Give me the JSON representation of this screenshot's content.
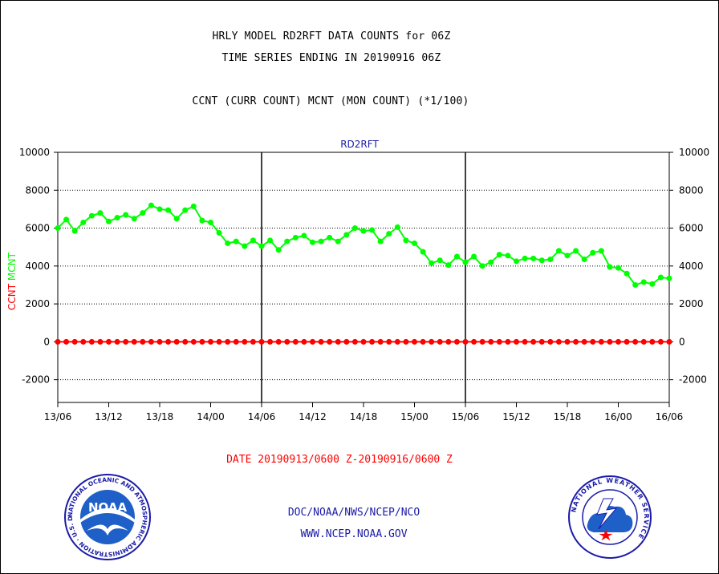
{
  "header": {
    "title_line1": "HRLY MODEL RD2RFT DATA COUNTS for 06Z",
    "title_line2": "TIME SERIES ENDING IN 20190916 06Z",
    "title_line3": "CCNT (CURR COUNT) MCNT (MON COUNT) (*1/100)"
  },
  "footer": {
    "date_range": "DATE 20190913/0600 Z-20190916/0600 Z",
    "org_line": "DOC/NOAA/NWS/NCEP/NCO",
    "url_line": "WWW.NCEP.NOAA.GOV"
  },
  "logos": {
    "noaa_text": "NOAA",
    "noaa_ring_text": "NATIONAL OCEANIC AND ATMOSPHERIC ADMINISTRATION · U.S. DEPARTMENT OF COMMERCE",
    "nws_ring_text": "NATIONAL WEATHER SERVICE"
  },
  "colors": {
    "mcnt_series": "#00ff00",
    "ccnt_series": "#ff0000",
    "chart_label": "#1a1aa8",
    "grid": "#000000"
  },
  "chart_data": {
    "type": "line",
    "title": "RD2RFT",
    "ylabel_parts": [
      {
        "text": "CCNT",
        "color": "#ff0000"
      },
      {
        "text": "MCNT",
        "color": "#00ff00"
      }
    ],
    "ylim": [
      -3200,
      10000
    ],
    "yticks": [
      -2000,
      0,
      2000,
      4000,
      6000,
      8000,
      10000
    ],
    "xlim": [
      0,
      72
    ],
    "xticks": [
      {
        "x": 0,
        "label": "13/06"
      },
      {
        "x": 6,
        "label": "13/12"
      },
      {
        "x": 12,
        "label": "13/18"
      },
      {
        "x": 18,
        "label": "14/00"
      },
      {
        "x": 24,
        "label": "14/06"
      },
      {
        "x": 30,
        "label": "14/12"
      },
      {
        "x": 36,
        "label": "14/18"
      },
      {
        "x": 42,
        "label": "15/00"
      },
      {
        "x": 48,
        "label": "15/06"
      },
      {
        "x": 54,
        "label": "15/12"
      },
      {
        "x": 60,
        "label": "15/18"
      },
      {
        "x": 66,
        "label": "16/00"
      },
      {
        "x": 72,
        "label": "16/06"
      }
    ],
    "day_boundaries": [
      24,
      48
    ],
    "grid": true,
    "right_axis": true,
    "series": [
      {
        "name": "MCNT",
        "color": "#00ff00",
        "values": [
          6000,
          6450,
          5850,
          6300,
          6650,
          6800,
          6350,
          6550,
          6700,
          6500,
          6800,
          7200,
          7000,
          6950,
          6500,
          6950,
          7150,
          6400,
          6300,
          5750,
          5200,
          5300,
          5050,
          5350,
          5050,
          5350,
          4850,
          5300,
          5500,
          5600,
          5250,
          5300,
          5500,
          5300,
          5650,
          6000,
          5850,
          5900,
          5300,
          5700,
          6050,
          5350,
          5200,
          4750,
          4150,
          4300,
          4050,
          4500,
          4200,
          4500,
          4000,
          4200,
          4600,
          4550,
          4250,
          4400,
          4400,
          4300,
          4350,
          4800,
          4550,
          4800,
          4350,
          4700,
          4800,
          3950,
          3900,
          3600,
          3000,
          3150,
          3050,
          3400,
          3350
        ]
      },
      {
        "name": "CCNT",
        "color": "#ff0000",
        "values": [
          0,
          0,
          0,
          0,
          0,
          0,
          0,
          0,
          0,
          0,
          0,
          0,
          0,
          0,
          0,
          0,
          0,
          0,
          0,
          0,
          0,
          0,
          0,
          0,
          0,
          0,
          0,
          0,
          0,
          0,
          0,
          0,
          0,
          0,
          0,
          0,
          0,
          0,
          0,
          0,
          0,
          0,
          0,
          0,
          0,
          0,
          0,
          0,
          0,
          0,
          0,
          0,
          0,
          0,
          0,
          0,
          0,
          0,
          0,
          0,
          0,
          0,
          0,
          0,
          0,
          0,
          0,
          0,
          0,
          0,
          0,
          0,
          0
        ]
      }
    ]
  }
}
